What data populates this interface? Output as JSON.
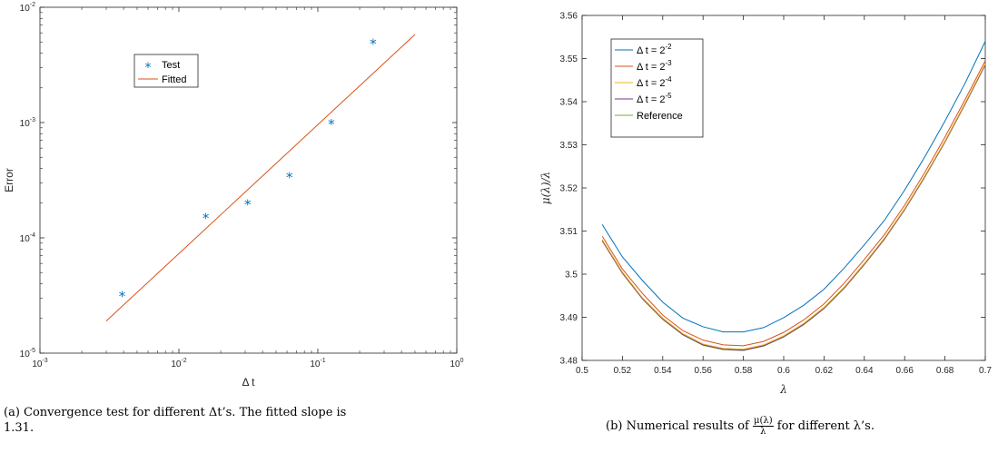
{
  "chart_data": [
    {
      "type": "scatter",
      "xscale": "log",
      "yscale": "log",
      "xlim": [
        0.001,
        1
      ],
      "ylim": [
        1e-05,
        0.01
      ],
      "xticks": [
        {
          "v": 0.001,
          "b": "10",
          "e": "-3"
        },
        {
          "v": 0.01,
          "b": "10",
          "e": "-2"
        },
        {
          "v": 0.1,
          "b": "10",
          "e": "-1"
        },
        {
          "v": 1,
          "b": "10",
          "e": "0"
        }
      ],
      "yticks": [
        {
          "v": 1e-05,
          "b": "10",
          "e": "-5"
        },
        {
          "v": 0.0001,
          "b": "10",
          "e": "-4"
        },
        {
          "v": 0.001,
          "b": "10",
          "e": "-3"
        },
        {
          "v": 0.01,
          "b": "10",
          "e": "-2"
        }
      ],
      "xlabel": "Δ t",
      "ylabel": "Error",
      "legend_position": "upper-left",
      "series": [
        {
          "name": "Test",
          "kind": "marker",
          "marker": "*",
          "color": "#0072BD",
          "x": [
            0.00390625,
            0.015625,
            0.03125,
            0.0625,
            0.125,
            0.25
          ],
          "y": [
            3.15e-05,
            0.00015,
            0.000197,
            0.00034,
            0.00098,
            0.0049
          ]
        },
        {
          "name": "Fitted",
          "kind": "line",
          "color": "#D95319",
          "x": [
            0.003,
            0.5
          ],
          "y": [
            1.9e-05,
            0.0058
          ]
        }
      ],
      "caption": "(a) Convergence test for different Δt’s. The fitted slope is 1.31."
    },
    {
      "type": "line",
      "xlim": [
        0.5,
        0.7
      ],
      "ylim": [
        3.48,
        3.56
      ],
      "xticks": [
        0.5,
        0.52,
        0.54,
        0.56,
        0.58,
        0.6,
        0.62,
        0.64,
        0.66,
        0.68,
        0.7
      ],
      "xtick_labels": [
        "0.5",
        "0.52",
        "0.54",
        "0.56",
        "0.58",
        "0.6",
        "0.62",
        "0.64",
        "0.66",
        "0.68",
        "0.7"
      ],
      "yticks": [
        3.48,
        3.49,
        3.5,
        3.51,
        3.52,
        3.53,
        3.54,
        3.55,
        3.56
      ],
      "ytick_labels": [
        "3.48",
        "3.49",
        "3.5",
        "3.51",
        "3.52",
        "3.53",
        "3.54",
        "3.55",
        "3.56"
      ],
      "xlabel": "λ",
      "ylabel": "μ(λ)/λ",
      "legend_position": "upper-left",
      "x": [
        0.51,
        0.52,
        0.53,
        0.54,
        0.55,
        0.56,
        0.57,
        0.58,
        0.59,
        0.6,
        0.61,
        0.62,
        0.63,
        0.64,
        0.65,
        0.66,
        0.67,
        0.68,
        0.69,
        0.7
      ],
      "series": [
        {
          "name": "Δ t = 2",
          "exp": "-2",
          "color": "#0072BD",
          "values": [
            3.5115,
            3.504,
            3.4985,
            3.4935,
            3.4898,
            3.4878,
            3.4866,
            3.4866,
            3.4876,
            3.4899,
            3.4928,
            3.4965,
            3.5014,
            3.5068,
            3.5125,
            3.5195,
            3.5272,
            3.5355,
            3.5443,
            3.554
          ]
        },
        {
          "name": "Δ t = 2",
          "exp": "-3",
          "color": "#D95319",
          "values": [
            3.5088,
            3.5012,
            3.4955,
            3.4905,
            3.4869,
            3.4847,
            3.4836,
            3.4834,
            3.4844,
            3.4865,
            3.4894,
            3.4931,
            3.4979,
            3.5034,
            3.5092,
            3.516,
            3.5236,
            3.5318,
            3.5405,
            3.5495
          ]
        },
        {
          "name": "Δ t = 2",
          "exp": "-4",
          "color": "#EDB120",
          "values": [
            3.508,
            3.5005,
            3.4945,
            3.4898,
            3.4862,
            3.4838,
            3.4828,
            3.4826,
            3.4836,
            3.4857,
            3.4886,
            3.4923,
            3.497,
            3.5025,
            3.5084,
            3.5152,
            3.5228,
            3.5309,
            3.5397,
            3.5488
          ]
        },
        {
          "name": "Δ t = 2",
          "exp": "-5",
          "color": "#7E2F8E",
          "values": [
            3.5078,
            3.5003,
            3.4943,
            3.4896,
            3.486,
            3.4836,
            3.4826,
            3.4824,
            3.4834,
            3.4855,
            3.4884,
            3.4921,
            3.4968,
            3.5023,
            3.5082,
            3.515,
            3.5226,
            3.5307,
            3.5395,
            3.5486
          ]
        },
        {
          "name": "Reference",
          "exp": "",
          "color": "#77AC30",
          "values": [
            3.5077,
            3.5002,
            3.4942,
            3.4895,
            3.4859,
            3.4835,
            3.4825,
            3.4823,
            3.4833,
            3.4854,
            3.4883,
            3.492,
            3.4967,
            3.5022,
            3.5081,
            3.5149,
            3.5225,
            3.5306,
            3.5394,
            3.5485
          ]
        }
      ],
      "caption_prefix": "(b) Numerical results of",
      "caption_num": "μ(λ)",
      "caption_den": "λ",
      "caption_suffix": "for different λ’s."
    }
  ]
}
